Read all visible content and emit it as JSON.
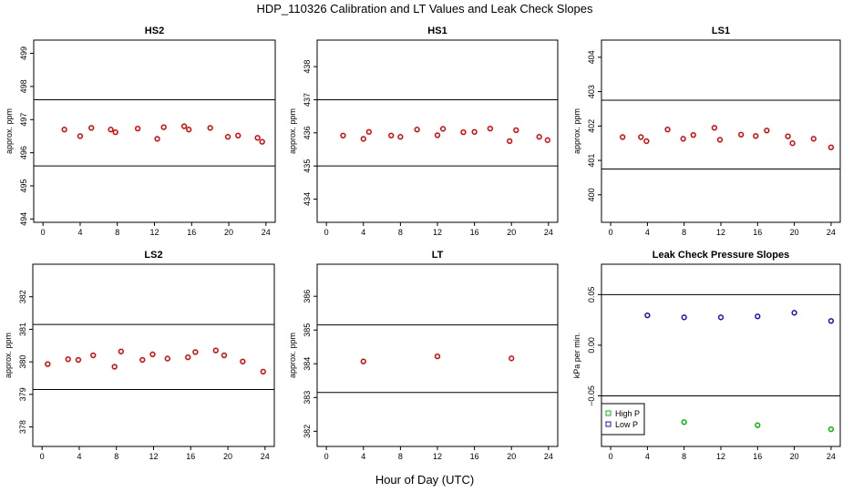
{
  "figure": {
    "title": "HDP_110326  Calibration and LT Values and Leak Check Slopes",
    "xlabel": "Hour of Day (UTC)"
  },
  "chart_data": [
    {
      "id": "hs2",
      "type": "scatter",
      "title": "HS2",
      "ylabel": "approx. ppm",
      "xlim": [
        -1,
        25
      ],
      "ylim": [
        493.9,
        499.4
      ],
      "xticks": [
        0,
        4,
        8,
        12,
        16,
        20,
        24
      ],
      "yticks": [
        494,
        495,
        496,
        497,
        498,
        499
      ],
      "hlines": [
        495.6,
        497.6
      ],
      "series": [
        {
          "color": "#e00000",
          "x": [
            2.3,
            4.0,
            5.2,
            7.3,
            7.8,
            10.2,
            12.3,
            13.0,
            15.2,
            15.7,
            18.0,
            19.9,
            21.0,
            23.1,
            23.6
          ],
          "y": [
            496.7,
            496.5,
            496.75,
            496.7,
            496.62,
            496.73,
            496.42,
            496.77,
            496.8,
            496.7,
            496.75,
            496.48,
            496.52,
            496.45,
            496.33
          ]
        }
      ]
    },
    {
      "id": "hs1",
      "type": "scatter",
      "title": "HS1",
      "ylabel": "approx. ppm",
      "xlim": [
        -1,
        25
      ],
      "ylim": [
        433.3,
        438.8
      ],
      "xticks": [
        0,
        4,
        8,
        12,
        16,
        20,
        24
      ],
      "yticks": [
        434,
        435,
        436,
        437,
        438
      ],
      "hlines": [
        435.0,
        437.0
      ],
      "series": [
        {
          "color": "#e00000",
          "x": [
            1.8,
            4.0,
            4.6,
            7.0,
            8.0,
            9.8,
            12.0,
            12.6,
            14.8,
            16.0,
            17.7,
            19.8,
            20.5,
            23.0,
            23.9
          ],
          "y": [
            435.92,
            435.82,
            436.03,
            435.92,
            435.88,
            436.1,
            435.93,
            436.12,
            436.02,
            436.03,
            436.13,
            435.75,
            436.08,
            435.88,
            435.78
          ]
        }
      ]
    },
    {
      "id": "ls1",
      "type": "scatter",
      "title": "LS1",
      "ylabel": "approx. ppm",
      "xlim": [
        -1,
        25
      ],
      "ylim": [
        399.2,
        404.5
      ],
      "xticks": [
        0,
        4,
        8,
        12,
        16,
        20,
        24
      ],
      "yticks": [
        400,
        401,
        402,
        403,
        404
      ],
      "hlines": [
        400.75,
        402.75
      ],
      "series": [
        {
          "color": "#e00000",
          "x": [
            1.3,
            3.3,
            3.9,
            6.2,
            7.9,
            9.0,
            11.3,
            11.9,
            14.2,
            15.8,
            17.0,
            19.3,
            19.8,
            22.1,
            24.0
          ],
          "y": [
            401.68,
            401.68,
            401.56,
            401.9,
            401.63,
            401.74,
            401.95,
            401.6,
            401.75,
            401.71,
            401.87,
            401.7,
            401.5,
            401.63,
            401.38
          ]
        }
      ]
    },
    {
      "id": "ls2",
      "type": "scatter",
      "title": "LS2",
      "ylabel": "approx. ppm",
      "xlim": [
        -1,
        25
      ],
      "ylim": [
        377.4,
        383.0
      ],
      "xticks": [
        0,
        4,
        8,
        12,
        16,
        20,
        24
      ],
      "yticks": [
        378,
        379,
        380,
        381,
        382
      ],
      "hlines": [
        379.15,
        381.15
      ],
      "series": [
        {
          "color": "#e00000",
          "x": [
            0.6,
            2.8,
            3.9,
            5.5,
            7.8,
            8.5,
            10.8,
            11.9,
            13.5,
            15.7,
            16.5,
            18.7,
            19.6,
            21.6,
            23.8
          ],
          "y": [
            379.93,
            380.08,
            380.06,
            380.2,
            379.85,
            380.32,
            380.06,
            380.23,
            380.1,
            380.14,
            380.3,
            380.35,
            380.2,
            380.01,
            379.7
          ]
        }
      ]
    },
    {
      "id": "lt",
      "type": "scatter",
      "title": "LT",
      "ylabel": "approx. ppm",
      "xlim": [
        -1,
        25
      ],
      "ylim": [
        381.55,
        386.95
      ],
      "xticks": [
        0,
        4,
        8,
        12,
        16,
        20,
        24
      ],
      "yticks": [
        382,
        383,
        384,
        385,
        386
      ],
      "hlines": [
        383.15,
        385.15
      ],
      "series": [
        {
          "color": "#e00000",
          "x": [
            4.0,
            12.0,
            20.0
          ],
          "y": [
            384.07,
            384.22,
            384.16
          ]
        }
      ]
    },
    {
      "id": "leak",
      "type": "scatter",
      "title": "Leak Check Pressure Slopes",
      "ylabel": "kPa per min.",
      "xlim": [
        -1,
        25
      ],
      "ylim": [
        -0.1,
        0.08
      ],
      "xticks": [
        0,
        4,
        8,
        12,
        16,
        20,
        24
      ],
      "yticks": [
        -0.05,
        0.0,
        0.05
      ],
      "ytick_labels": [
        "−0.05",
        "0.00",
        "0.05"
      ],
      "hlines": [
        -0.05,
        0.05
      ],
      "legend": {
        "position": "bottom-left",
        "entries": [
          "High P",
          "Low P"
        ]
      },
      "series": [
        {
          "name": "High P",
          "color": "#00bb00",
          "x": [
            8,
            16,
            24
          ],
          "y": [
            -0.076,
            -0.079,
            -0.083
          ]
        },
        {
          "name": "Low P",
          "color": "#1010c8",
          "x": [
            4,
            8,
            12,
            16,
            20,
            24
          ],
          "y": [
            0.0295,
            0.0275,
            0.0275,
            0.0285,
            0.032,
            0.024
          ]
        }
      ]
    }
  ]
}
